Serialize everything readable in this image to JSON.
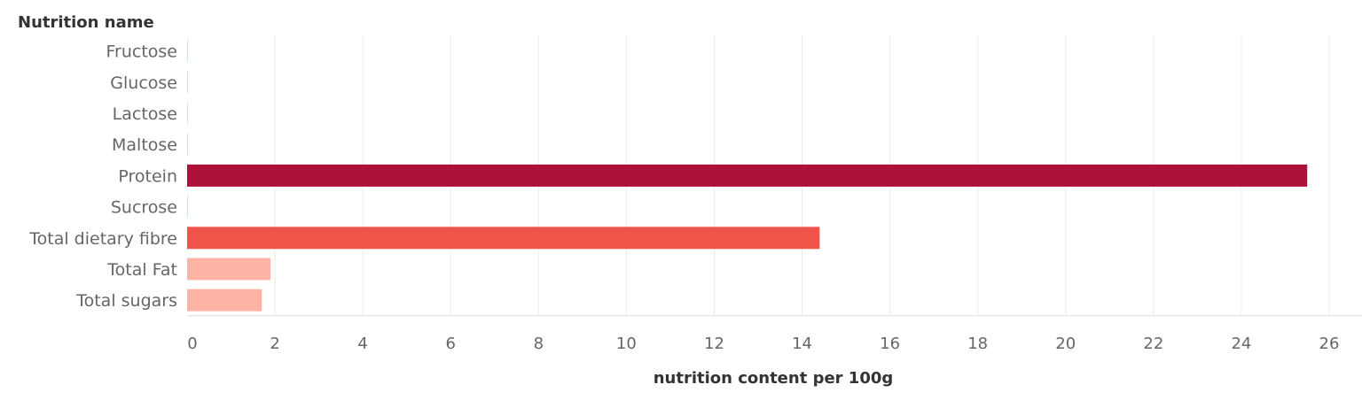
{
  "chart_data": {
    "type": "bar",
    "orientation": "horizontal",
    "row_header": "Nutrition name",
    "xlabel": "nutrition content per 100g",
    "categories": [
      "Fructose",
      "Glucose",
      "Lactose",
      "Maltose",
      "Protein",
      "Sucrose",
      "Total dietary fibre",
      "Total Fat",
      "Total sugars"
    ],
    "values": [
      0.02,
      0.02,
      0.02,
      0.02,
      25.5,
      0.02,
      14.4,
      1.9,
      1.7
    ],
    "colors": [
      "#fdd4c8",
      "#fdd4c8",
      "#fdd4c8",
      "#fdd4c8",
      "#ad1139",
      "#fdd4c8",
      "#ef544b",
      "#ffb3a5",
      "#ffb3a5"
    ],
    "xlim": [
      0,
      26
    ],
    "xticks": [
      0,
      2,
      4,
      6,
      8,
      10,
      12,
      14,
      16,
      18,
      20,
      22,
      24,
      26
    ],
    "grid": true
  }
}
